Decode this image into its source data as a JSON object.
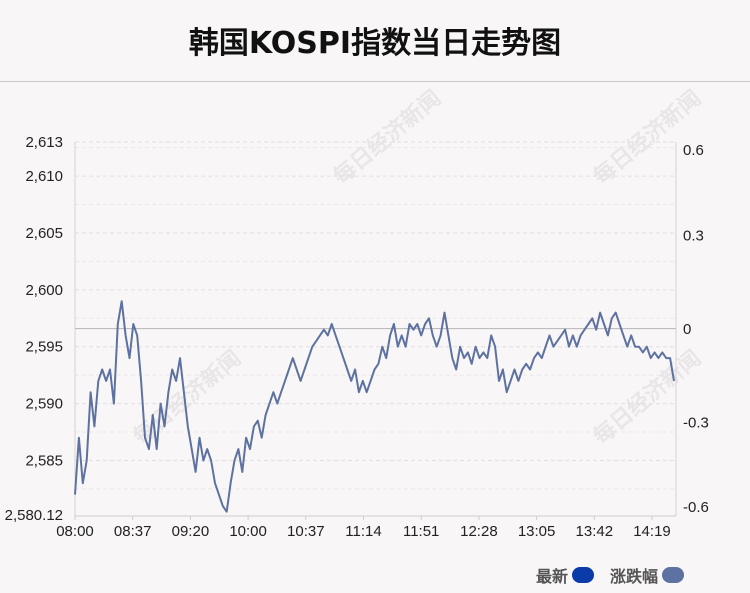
{
  "title": "韩国KOSPI指数当日走势图",
  "watermark": "每日经济新闻",
  "legend": [
    {
      "label": "最新",
      "color": "#0b3ba8"
    },
    {
      "label": "涨跌幅",
      "color": "#5d72a0"
    }
  ],
  "chart_data": {
    "type": "line",
    "title": "韩国KOSPI指数当日走势图",
    "x_ticks": [
      "08:00",
      "08:37",
      "09:20",
      "10:00",
      "10:37",
      "11:14",
      "11:51",
      "12:28",
      "13:05",
      "13:42",
      "14:19"
    ],
    "y_left_ticks": [
      "2,580.12",
      "2,585",
      "2,590",
      "2,595",
      "2,600",
      "2,605",
      "2,610",
      "2,613"
    ],
    "y_left_values": [
      2580.12,
      2585,
      2590,
      2595,
      2600,
      2605,
      2610,
      2613
    ],
    "y_left_range": [
      2580.12,
      2613
    ],
    "y_right_ticks": [
      "-0.6",
      "-0.3",
      "0",
      "0.3",
      "0.6"
    ],
    "y_right_values": [
      -0.6,
      -0.3,
      0,
      0.3,
      0.6
    ],
    "y_right_range": [
      -0.6,
      0.6
    ],
    "reference_value": 2596.6,
    "line_color": "#5d72a0",
    "grid": "dashed horizontal",
    "series": [
      {
        "values": [
          2582,
          2587,
          2583,
          2585,
          2591,
          2588,
          2592,
          2593,
          2592,
          2593,
          2590,
          2597,
          2599,
          2596,
          2594,
          2597,
          2596,
          2592,
          2587,
          2586,
          2589,
          2586,
          2590,
          2588,
          2591,
          2593,
          2592,
          2594,
          2591,
          2588,
          2586,
          2584,
          2587,
          2585,
          2586,
          2585,
          2583,
          2582,
          2581,
          2580.5,
          2583,
          2585,
          2586,
          2584,
          2587,
          2586,
          2588,
          2588.5,
          2587,
          2589,
          2590,
          2591,
          2590,
          2591,
          2592,
          2593,
          2594,
          2593,
          2592,
          2593,
          2594,
          2595,
          2595.5,
          2596,
          2596.5,
          2596,
          2597,
          2596,
          2595,
          2594,
          2593,
          2592,
          2593,
          2591,
          2592,
          2591,
          2592,
          2593,
          2593.5,
          2595,
          2594,
          2596,
          2597,
          2595,
          2596,
          2595,
          2597,
          2596.5,
          2597,
          2596,
          2597,
          2597.5,
          2596,
          2595,
          2596,
          2598,
          2596,
          2594,
          2593,
          2595,
          2594,
          2594.5,
          2593.5,
          2595,
          2594,
          2594.5,
          2594,
          2596,
          2595,
          2592,
          2593,
          2591,
          2592,
          2593,
          2592,
          2593,
          2593.5,
          2593,
          2594,
          2594.5,
          2594,
          2595,
          2596,
          2595,
          2595.5,
          2596,
          2596.5,
          2595,
          2596,
          2595,
          2596,
          2596.5,
          2597,
          2597.5,
          2596.5,
          2598,
          2597,
          2596,
          2597.5,
          2598,
          2597,
          2596,
          2595,
          2596,
          2595,
          2595,
          2594.5,
          2595,
          2594,
          2594.5,
          2594,
          2594.5,
          2594,
          2594,
          2592
        ]
      }
    ]
  }
}
